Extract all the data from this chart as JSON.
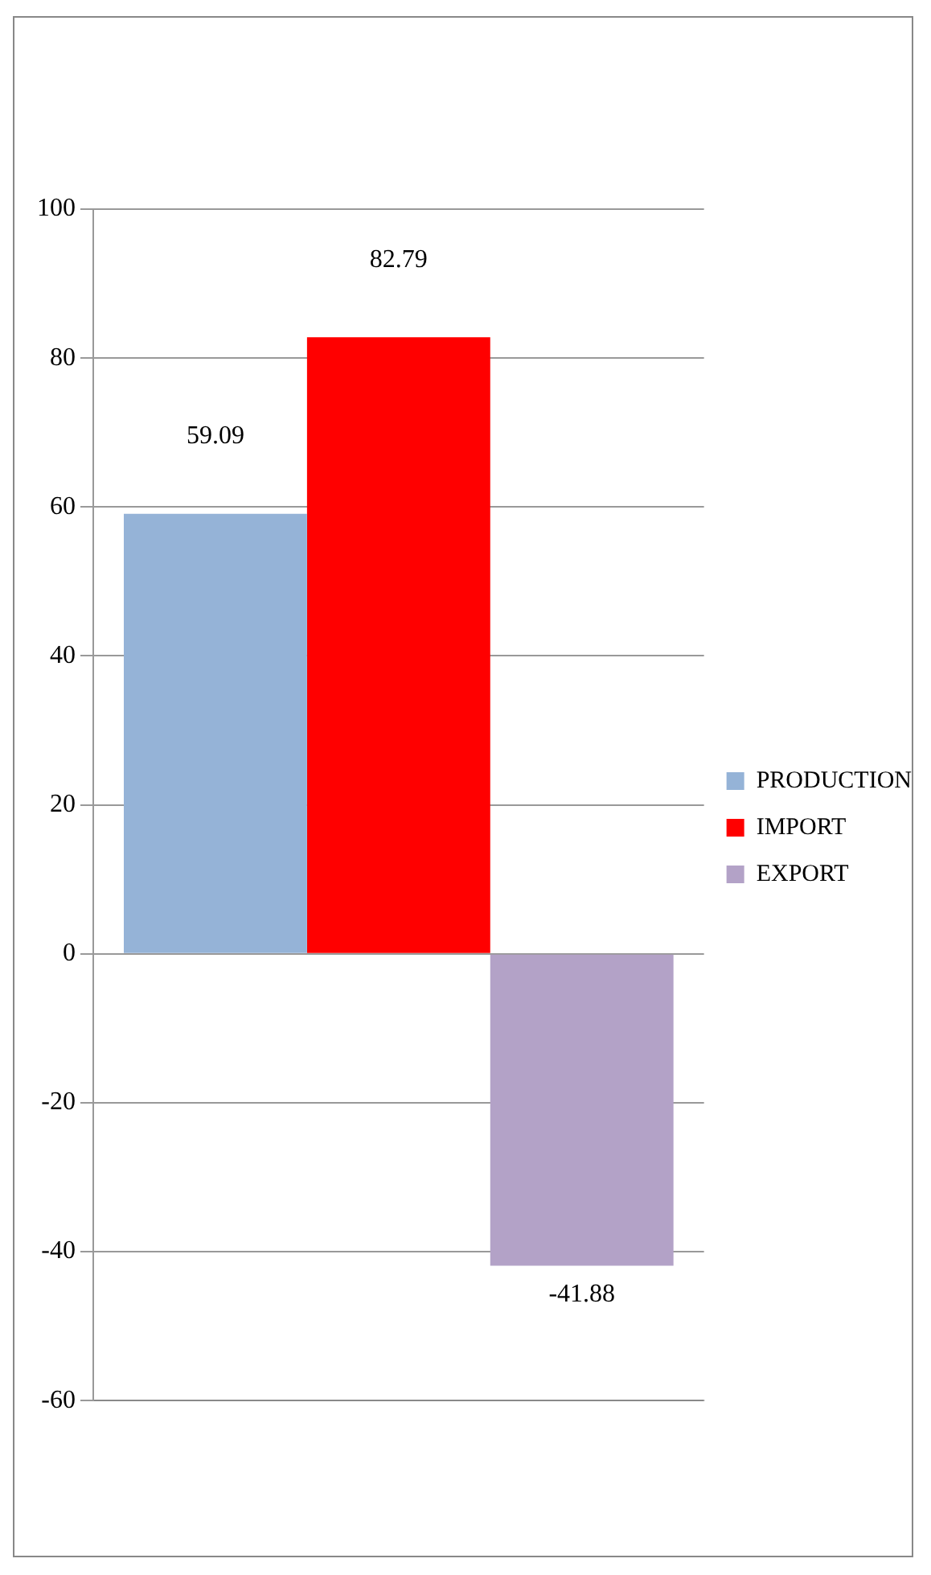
{
  "chart_data": {
    "type": "bar",
    "categories": [
      null
    ],
    "series": [
      {
        "name": "PRODUCTION",
        "color": "#95b3d7",
        "values": [
          59.09
        ]
      },
      {
        "name": "IMPORT",
        "color": "#ff0000",
        "values": [
          82.79
        ]
      },
      {
        "name": "EXPORT",
        "color": "#b3a2c7",
        "values": [
          -41.88
        ]
      }
    ],
    "ylim": [
      -60,
      100
    ],
    "yticks": [
      -60,
      -40,
      -20,
      0,
      20,
      40,
      60,
      80,
      100
    ],
    "grid": "y",
    "legend": "right",
    "data_labels": true
  }
}
